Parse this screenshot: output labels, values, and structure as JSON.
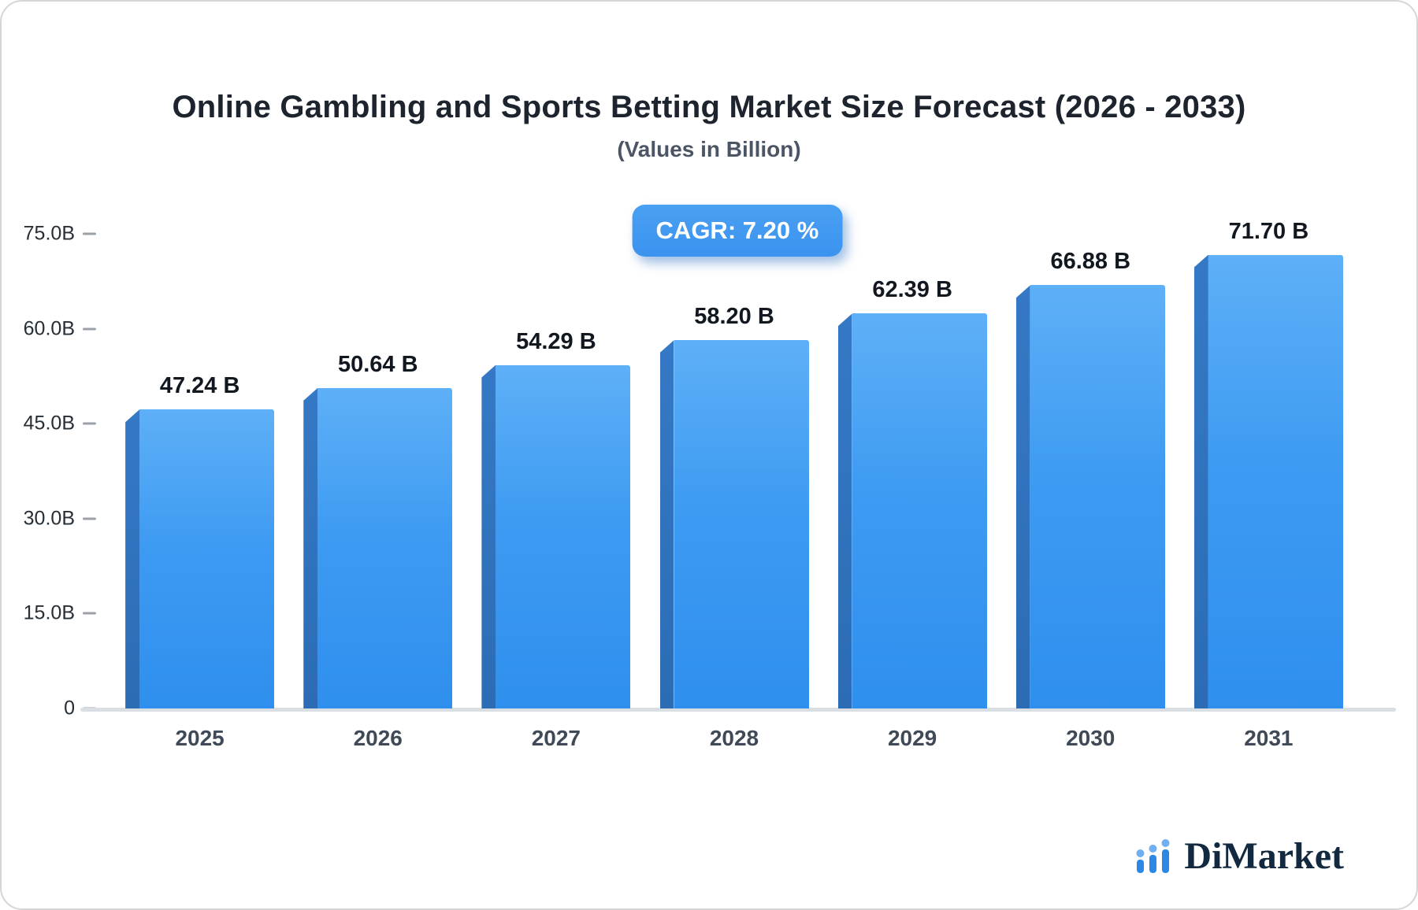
{
  "chart_data": {
    "type": "bar",
    "title": "Online Gambling and Sports Betting Market Size Forecast (2026 - 2033)",
    "subtitle": "(Values in Billion)",
    "annotation": "CAGR: 7.20 %",
    "categories": [
      "2025",
      "2026",
      "2027",
      "2028",
      "2029",
      "2030",
      "2031"
    ],
    "values": [
      47.24,
      50.64,
      54.29,
      58.2,
      62.39,
      66.88,
      71.7
    ],
    "value_labels": [
      "47.24 B",
      "50.64 B",
      "54.29 B",
      "58.20 B",
      "62.39 B",
      "66.88 B",
      "71.70 B"
    ],
    "xlabel": "",
    "ylabel": "",
    "ylim": [
      0,
      75
    ],
    "yticks": [
      {
        "value": 0,
        "label": "0"
      },
      {
        "value": 15,
        "label": "15.0B"
      },
      {
        "value": 30,
        "label": "30.0B"
      },
      {
        "value": 45,
        "label": "45.0B"
      },
      {
        "value": 60,
        "label": "60.0B"
      },
      {
        "value": 75,
        "label": "75.0B"
      }
    ],
    "grid": false,
    "legend": false,
    "bar_color": "#3e9bf2",
    "bar_side_color": "#2e74c0",
    "badge_color": "#3b93ef",
    "axis_line_color": "#d9dee3"
  },
  "logo": {
    "text": "DiMarket",
    "icon": "bar-chart-dots-icon",
    "color": "#13293f",
    "accent": "#2e86e5"
  }
}
